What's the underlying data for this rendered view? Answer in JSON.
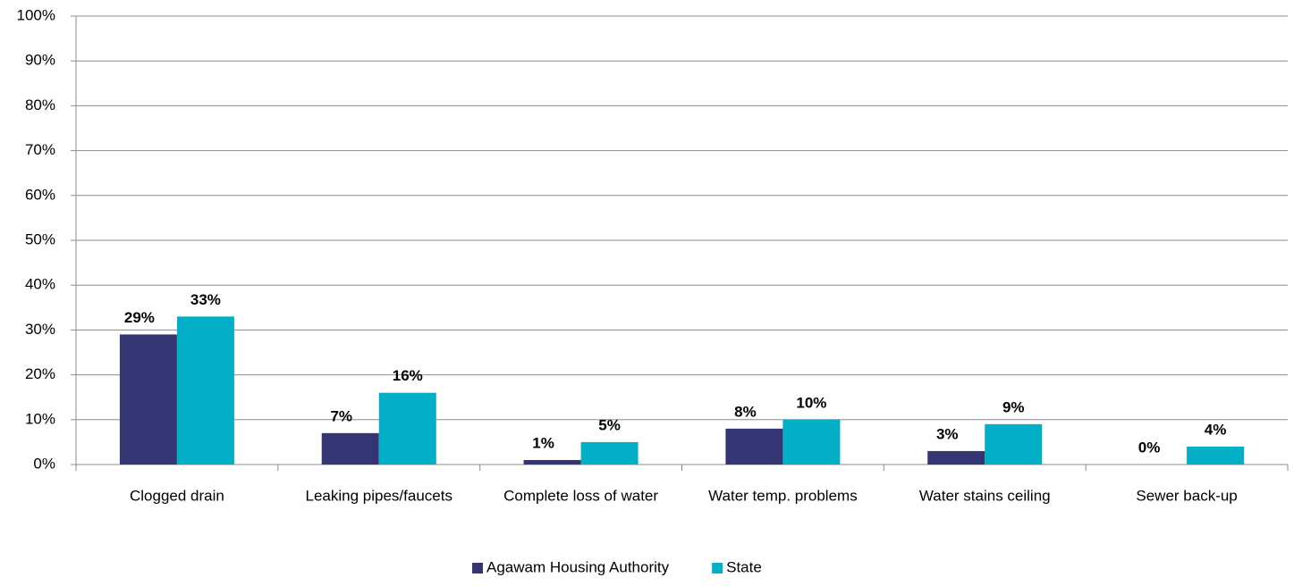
{
  "chart_data": {
    "type": "bar",
    "categories": [
      "Clogged drain",
      "Leaking pipes/faucets",
      "Complete loss of water",
      "Water temp. problems",
      "Water stains ceiling",
      "Sewer back-up"
    ],
    "series": [
      {
        "name": "Agawam Housing Authority",
        "color": "#343673",
        "values": [
          29,
          7,
          1,
          8,
          3,
          0
        ],
        "value_labels": [
          "29%",
          "7%",
          "1%",
          "8%",
          "3%",
          "0%"
        ]
      },
      {
        "name": "State",
        "color": "#03afc6",
        "values": [
          33,
          16,
          5,
          10,
          9,
          4
        ],
        "value_labels": [
          "33%",
          "16%",
          "5%",
          "10%",
          "9%",
          "4%"
        ]
      }
    ],
    "ylim": [
      0,
      100
    ],
    "yticks": [
      {
        "value": 0,
        "label": "0%"
      },
      {
        "value": 10,
        "label": "10%"
      },
      {
        "value": 20,
        "label": "20%"
      },
      {
        "value": 30,
        "label": "30%"
      },
      {
        "value": 40,
        "label": "40%"
      },
      {
        "value": 50,
        "label": "50%"
      },
      {
        "value": 60,
        "label": "60%"
      },
      {
        "value": 70,
        "label": "70%"
      },
      {
        "value": 80,
        "label": "80%"
      },
      {
        "value": 90,
        "label": "90%"
      },
      {
        "value": 100,
        "label": "100%"
      }
    ],
    "grid": true,
    "legend": "bottom"
  }
}
